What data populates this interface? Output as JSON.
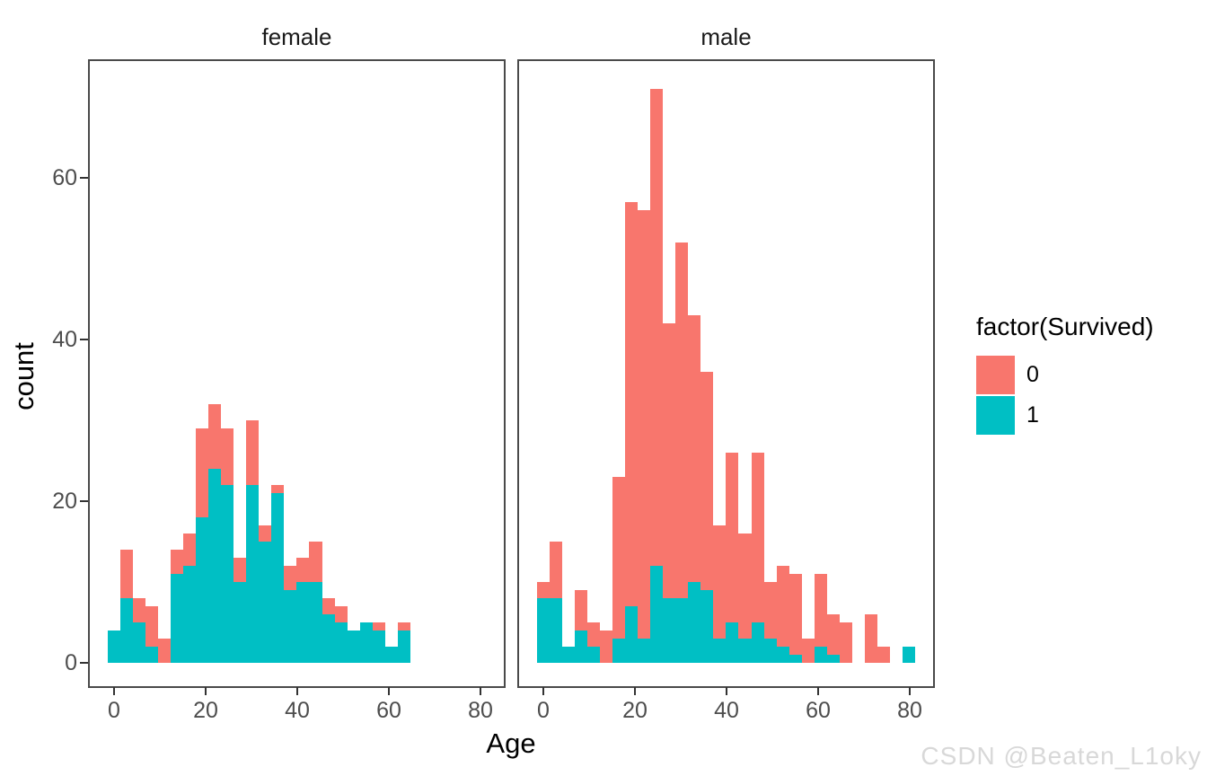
{
  "facets": [
    {
      "label": "female"
    },
    {
      "label": "male"
    }
  ],
  "legend": {
    "title": "factor(Survived)",
    "entries": [
      {
        "label": "0",
        "color": "#F8766D"
      },
      {
        "label": "1",
        "color": "#00BFC4"
      }
    ]
  },
  "x_axis": {
    "title": "Age",
    "ticks": [
      0,
      20,
      40,
      60,
      80
    ]
  },
  "y_axis": {
    "title": "count",
    "ticks": [
      0,
      20,
      40,
      60
    ]
  },
  "watermark": "CSDN @Beaten_L1oky",
  "chart_data": {
    "type": "bar",
    "subtype": "stacked-histogram",
    "title": "",
    "xlabel": "Age",
    "ylabel": "count",
    "legend_title": "factor(Survived)",
    "legend_position": "right",
    "grid": false,
    "facet_by": "Sex",
    "bin_start_age": -1.5,
    "bin_width_age": 2.75,
    "xlim": [
      -5,
      85
    ],
    "ylim": [
      0,
      75
    ],
    "stack_order_top_to_bottom": [
      "0",
      "1"
    ],
    "facets": [
      {
        "name": "female",
        "series": [
          {
            "name": "0",
            "color": "#F8766D",
            "values": [
              0,
              6,
              3,
              5,
              3,
              3,
              4,
              11,
              8,
              7,
              3,
              8,
              2,
              1,
              3,
              3,
              5,
              2,
              2,
              0,
              0,
              1,
              0,
              1
            ]
          },
          {
            "name": "1",
            "color": "#00BFC4",
            "values": [
              4,
              8,
              5,
              2,
              0,
              11,
              12,
              18,
              24,
              22,
              10,
              22,
              15,
              21,
              9,
              10,
              10,
              6,
              5,
              4,
              5,
              4,
              2,
              4
            ]
          }
        ]
      },
      {
        "name": "male",
        "series": [
          {
            "name": "0",
            "color": "#F8766D",
            "values": [
              2,
              7,
              0,
              5,
              3,
              4,
              20,
              50,
              53,
              59,
              34,
              44,
              33,
              27,
              14,
              21,
              13,
              21,
              7,
              10,
              10,
              3,
              9,
              5,
              5,
              0,
              6,
              2,
              0,
              0
            ]
          },
          {
            "name": "1",
            "color": "#00BFC4",
            "values": [
              8,
              8,
              2,
              4,
              2,
              0,
              3,
              7,
              3,
              12,
              8,
              8,
              10,
              9,
              3,
              5,
              3,
              5,
              3,
              2,
              1,
              0,
              2,
              1,
              0,
              0,
              0,
              0,
              0,
              2
            ]
          }
        ]
      }
    ]
  }
}
